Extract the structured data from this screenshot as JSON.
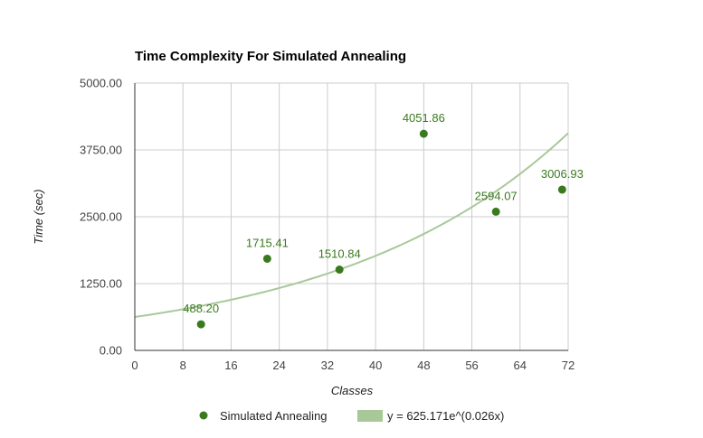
{
  "chart_data": {
    "type": "scatter",
    "title": "Time Complexity For Simulated Annealing",
    "xlabel": "Classes",
    "ylabel": "Time (sec)",
    "xlim": [
      0,
      72
    ],
    "ylim": [
      0,
      5000
    ],
    "x_ticks": [
      0,
      8,
      16,
      24,
      32,
      40,
      48,
      56,
      64,
      72
    ],
    "y_ticks": [
      0,
      1250,
      2500,
      3750,
      5000
    ],
    "y_tick_labels": [
      "0.00",
      "1250.00",
      "2500.00",
      "3750.00",
      "5000.00"
    ],
    "grid": true,
    "legend_position": "bottom",
    "series": [
      {
        "name": "Simulated Annealing",
        "color": "#3a7a1f",
        "points": [
          {
            "x": 11,
            "y": 488.2,
            "label": "488.20"
          },
          {
            "x": 22,
            "y": 1715.41,
            "label": "1715.41"
          },
          {
            "x": 34,
            "y": 1510.84,
            "label": "1510.84"
          },
          {
            "x": 48,
            "y": 4051.86,
            "label": "4051.86"
          },
          {
            "x": 60,
            "y": 2594.07,
            "label": "2594.07"
          },
          {
            "x": 71,
            "y": 3006.93,
            "label": "3006.93"
          }
        ]
      }
    ],
    "trendline": {
      "name": "y = 625.171e^(0.026x)",
      "type": "exponential",
      "a": 625.171,
      "b": 0.026,
      "color": "#a9c89a"
    }
  }
}
